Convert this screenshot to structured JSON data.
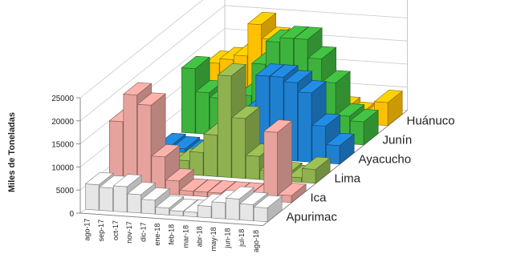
{
  "chart_data": {
    "type": "bar3d",
    "y_label": "Miles de Toneladas",
    "categories": [
      "ago-17",
      "sep-17",
      "oct-17",
      "nov-17",
      "dic-17",
      "ene-18",
      "feb-18",
      "mar-18",
      "abr-18",
      "may-18",
      "jun-18",
      "jul-18",
      "ago-18"
    ],
    "series": [
      {
        "name": "Apurimac",
        "color": "#e6e6e6",
        "values": [
          5500,
          5000,
          5500,
          4000,
          3000,
          1500,
          1000,
          1000,
          2500,
          3500,
          4500,
          3500,
          3000
        ]
      },
      {
        "name": "Ica",
        "color": "#e6a29c",
        "values": [
          15000,
          21000,
          19000,
          8000,
          3000,
          1000,
          1000,
          1000,
          1000,
          1000,
          1000,
          15000,
          1500
        ]
      },
      {
        "name": "Lima",
        "color": "#8fb14f",
        "values": [
          1000,
          1500,
          2000,
          3000,
          5000,
          9000,
          22000,
          13000,
          5000,
          2000,
          1500,
          1000,
          3000
        ]
      },
      {
        "name": "Ayacucho",
        "color": "#1f80d0",
        "values": [
          1500,
          1000,
          500,
          1000,
          2000,
          4000,
          10000,
          18000,
          18000,
          17000,
          15000,
          8000,
          4000
        ]
      },
      {
        "name": "Junín",
        "color": "#3db33d",
        "values": [
          14000,
          9000,
          8000,
          8000,
          9000,
          16000,
          21000,
          22000,
          22000,
          18000,
          13000,
          6000,
          5000
        ]
      },
      {
        "name": "Huánuco",
        "color": "#ffc000",
        "values": [
          11000,
          12000,
          13000,
          20000,
          17000,
          15000,
          11000,
          8000,
          5000,
          3000,
          2000,
          1500,
          5000
        ]
      }
    ],
    "ylim": [
      0,
      25000
    ],
    "yticks": [
      0,
      5000,
      10000,
      15000,
      20000,
      25000
    ],
    "grid": true
  }
}
